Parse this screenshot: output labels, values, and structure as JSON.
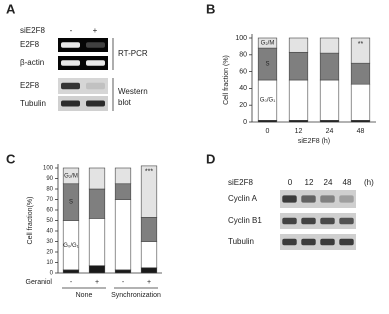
{
  "panels": {
    "A": {
      "letter": "A",
      "condition": "siE2F8",
      "lanes": [
        "-",
        "+"
      ],
      "rows": [
        "E2F8",
        "β-actin",
        "E2F8",
        "Tubulin"
      ],
      "methods": [
        "RT-PCR",
        "Western blot"
      ]
    },
    "B": {
      "letter": "B"
    },
    "C": {
      "letter": "C"
    },
    "D": {
      "letter": "D",
      "condition": "siE2F8",
      "lanes": [
        "0",
        "12",
        "24",
        "48"
      ],
      "unit": "(h)",
      "rows": [
        "Cyclin A",
        "Cyclin B1",
        "Tubulin"
      ]
    }
  },
  "chart_data": [
    {
      "type": "stacked_bar",
      "categories": [
        "0",
        "12",
        "24",
        "48"
      ],
      "x_label": "siE2F8 (h)",
      "y_label": "Cell fraction (%)",
      "ylim": [
        0,
        100
      ],
      "yticks": [
        0,
        20,
        40,
        60,
        80,
        100
      ],
      "bar_labels": [
        null,
        null,
        null,
        "**"
      ],
      "series": [
        {
          "color": "#1a1a1a",
          "values": [
            2,
            2,
            2,
            2
          ]
        },
        {
          "name": "G₀/G₁",
          "color": "#ffffff",
          "values": [
            48,
            48,
            48,
            43
          ]
        },
        {
          "name": "S",
          "color": "#7f7f7f",
          "values": [
            38,
            33,
            32,
            25
          ]
        },
        {
          "name": "G₂/M",
          "color": "#e3e3e3",
          "values": [
            12,
            17,
            18,
            30
          ]
        }
      ]
    },
    {
      "type": "stacked_bar",
      "categories": [
        "-",
        "+",
        "-",
        "+"
      ],
      "category_axis_label": "Geraniol",
      "group_labels": [
        "None",
        "Synchronization"
      ],
      "y_label": "Cell fraction(%)",
      "ylim": [
        0,
        100
      ],
      "yticks": [
        0,
        10,
        20,
        30,
        40,
        50,
        60,
        70,
        80,
        90,
        100
      ],
      "bar_labels": [
        null,
        null,
        null,
        "***"
      ],
      "series": [
        {
          "color": "#1a1a1a",
          "values": [
            3,
            7,
            3,
            5
          ]
        },
        {
          "name": "G₀/G₁",
          "color": "#ffffff",
          "values": [
            47,
            45,
            67,
            25
          ]
        },
        {
          "name": "S",
          "color": "#7f7f7f",
          "values": [
            35,
            28,
            15,
            23
          ]
        },
        {
          "name": "G₂/M",
          "color": "#e3e3e3",
          "values": [
            15,
            20,
            15,
            49
          ]
        }
      ]
    }
  ]
}
